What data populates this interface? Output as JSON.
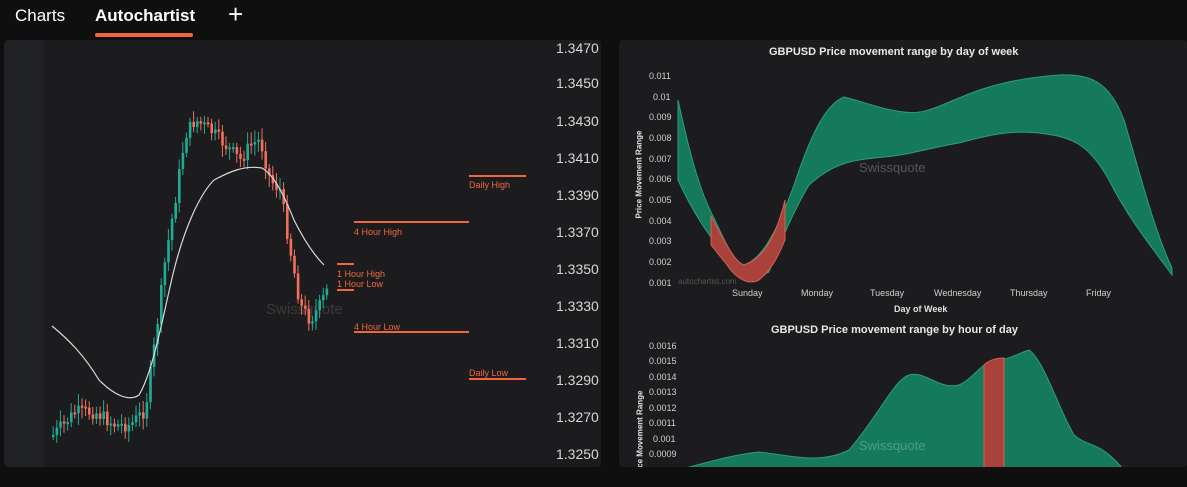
{
  "tabs": {
    "charts": "Charts",
    "autochartist": "Autochartist",
    "add": "+"
  },
  "price_chart": {
    "price_labels": [
      "1.3470",
      "1.3450",
      "1.3430",
      "1.3410",
      "1.3390",
      "1.3370",
      "1.3350",
      "1.3330",
      "1.3310",
      "1.3290",
      "1.3270",
      "1.3250"
    ],
    "levels": {
      "daily_high": "Daily High",
      "four_hour_high": "4 Hour High",
      "one_hour_high": "1 Hour High",
      "one_hour_low": "1 Hour Low",
      "four_hour_low": "4 Hour Low",
      "daily_low": "Daily Low"
    },
    "watermark": "Swissquote",
    "colors": {
      "up": "#22ab94",
      "down": "#f2705b",
      "level": "#f0673f",
      "ma": "#d9d9d9"
    }
  },
  "day_chart": {
    "title": "GBPUSD Price movement range by day of week",
    "y_ticks": [
      "0.011",
      "0.01",
      "0.009",
      "0.008",
      "0.007",
      "0.006",
      "0.005",
      "0.004",
      "0.003",
      "0.002",
      "0.001"
    ],
    "x_ticks": [
      "Sunday",
      "Monday",
      "Tuesday",
      "Wednesday",
      "Thursday",
      "Friday"
    ],
    "ylabel": "Price Movement Range",
    "xlabel": "Day of Week",
    "watermark": "Swissquote",
    "source": "autochartist.com"
  },
  "hour_chart": {
    "title": "GBPUSD Price movement range by hour of day",
    "y_ticks": [
      "0.0016",
      "0.0015",
      "0.0014",
      "0.0013",
      "0.0012",
      "0.0011",
      "0.001",
      "0.0009"
    ],
    "ylabel": "Price Movement Range",
    "watermark": "Swissquote"
  },
  "colors": {
    "band": "#157a5c",
    "band_edge": "#2aa07a",
    "highlight": "#a8423a"
  }
}
